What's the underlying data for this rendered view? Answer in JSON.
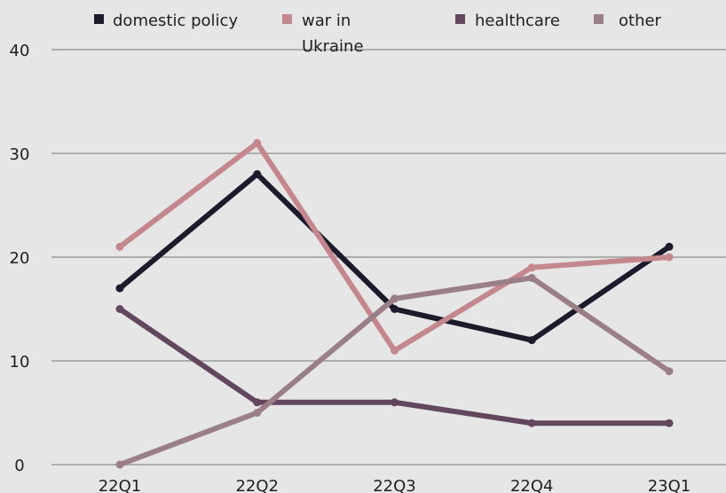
{
  "chart_data": {
    "type": "line",
    "categories": [
      "22Q1",
      "22Q2",
      "22Q3",
      "22Q4",
      "23Q1"
    ],
    "ylim": [
      0,
      40
    ],
    "yticks": [
      0,
      10,
      20,
      30,
      40
    ],
    "grid": "horizontal",
    "legend_placement": "top",
    "series": [
      {
        "name": "domestic policy",
        "color": "#1b1b2b",
        "values": [
          17,
          28,
          15,
          12,
          21
        ]
      },
      {
        "name": "war in Ukraine",
        "name_lines": [
          "war in",
          "Ukraine"
        ],
        "color": "#c4878d",
        "values": [
          21,
          31,
          11,
          19,
          20
        ]
      },
      {
        "name": "healthcare",
        "color": "#62475f",
        "values": [
          15,
          6,
          6,
          4,
          4
        ]
      },
      {
        "name": "other",
        "color": "#9b7f87",
        "values": [
          0,
          5,
          16,
          18,
          9
        ]
      }
    ]
  }
}
